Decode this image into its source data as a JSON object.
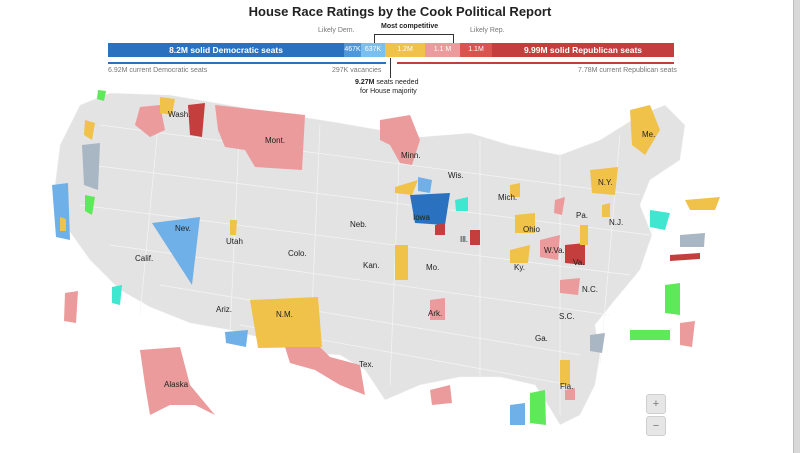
{
  "title": "House Race Ratings by the Cook Political Report",
  "bar": {
    "segments": [
      {
        "key": "solid_dem",
        "label": "8.2M solid Democratic seats",
        "color": "#2a72bf",
        "width": 236,
        "big": true
      },
      {
        "key": "likely_dem",
        "label": "467K",
        "color": "#4d97da",
        "width": 17,
        "big": false
      },
      {
        "key": "lean_dem",
        "label": "637K",
        "color": "#79bff0",
        "width": 24,
        "big": false
      },
      {
        "key": "tossup",
        "label": "1.2M",
        "color": "#f0c24a",
        "width": 40,
        "big": false
      },
      {
        "key": "lean_rep",
        "label": "1.1 M",
        "color": "#eb9b9b",
        "width": 35,
        "big": false
      },
      {
        "key": "likely_rep",
        "label": "1.1M",
        "color": "#d9534f",
        "width": 32,
        "big": false
      },
      {
        "key": "solid_rep",
        "label": "9.99M solid Republican seats",
        "color": "#c43e3e",
        "width": 182,
        "big": true
      }
    ],
    "likely_dem_label": "Likely Dem.",
    "most_competitive_label": "Most competitive",
    "likely_rep_label": "Likely Rep."
  },
  "below": {
    "current_dem": "6.92M current Democratic seats",
    "vacancies": "297K vacancies",
    "current_rep": "7.78M current Republican seats",
    "needed_value": "9.27M",
    "needed_text": "seats needed",
    "needed_text2": "for House majority"
  },
  "colors": {
    "base": "#e3e3e3",
    "solid_dem": "#2a72bf",
    "lean_dem": "#6fb0e8",
    "tossup": "#f0c24a",
    "lean_rep": "#eb9b9b",
    "solid_rep": "#c43e3e",
    "green": "#5ee85a",
    "cyan": "#3fe6d0"
  },
  "states": {
    "wash": "Wash.",
    "mont": "Mont.",
    "minn": "Minn.",
    "wis": "Wis.",
    "mich": "Mich.",
    "ny": "N.Y.",
    "me": "Me.",
    "pa": "Pa.",
    "nj": "N.J.",
    "neb": "Neb.",
    "iowa": "Iowa",
    "ill": "Ill.",
    "ohio": "Ohio",
    "nev": "Nev.",
    "utah": "Utah",
    "colo": "Colo.",
    "calif": "Calif.",
    "kan": "Kan.",
    "mo": "Mo.",
    "ky": "Ky.",
    "wva": "W.Va.",
    "va": "Va.",
    "nc": "N.C.",
    "sc": "S.C.",
    "ariz": "Ariz.",
    "nm": "N.M.",
    "ark": "Ark.",
    "ga": "Ga.",
    "tex": "Tex.",
    "alaska": "Alaska",
    "fla": "Fla."
  },
  "zoom": {
    "in": "+",
    "out": "−"
  }
}
